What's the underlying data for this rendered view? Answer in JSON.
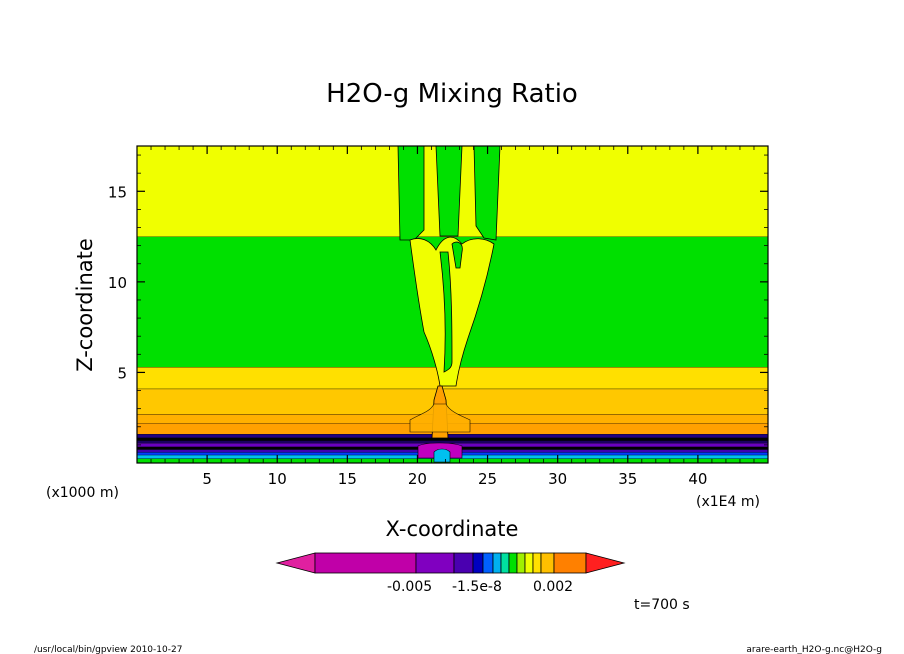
{
  "chart_data": {
    "type": "heatmap",
    "title": "H2O-g Mixing Ratio",
    "xlabel": "X-coordinate",
    "ylabel": "Z-coordinate",
    "x_unit_label": "(x1E4 m)",
    "y_unit_label": "(x1000 m)",
    "xlim": [
      0,
      45
    ],
    "ylim": [
      0,
      17.5
    ],
    "x_ticks": [
      "5",
      "10",
      "15",
      "20",
      "25",
      "30",
      "35",
      "40"
    ],
    "y_ticks": [
      "5",
      "10",
      "15"
    ],
    "x_tick_values": [
      5,
      10,
      15,
      20,
      25,
      30,
      35,
      40
    ],
    "y_tick_values": [
      5,
      10,
      15
    ],
    "bands": [
      {
        "z0": 0.0,
        "z1": 0.25,
        "color": "#00e000"
      },
      {
        "z0": 0.25,
        "z1": 0.45,
        "color": "#00c0f0"
      },
      {
        "z0": 0.45,
        "z1": 0.6,
        "color": "#0040ff"
      },
      {
        "z0": 0.6,
        "z1": 0.75,
        "color": "#4000b0"
      },
      {
        "z0": 0.75,
        "z1": 0.9,
        "color": "#000000"
      },
      {
        "z0": 0.9,
        "z1": 1.1,
        "color": "#6a00c0"
      },
      {
        "z0": 1.1,
        "z1": 1.25,
        "color": "#1a0060"
      },
      {
        "z0": 1.25,
        "z1": 1.4,
        "color": "#000000"
      },
      {
        "z0": 1.4,
        "z1": 1.6,
        "color": "#200080"
      },
      {
        "z0": 1.6,
        "z1": 2.2,
        "color": "#ffa000"
      },
      {
        "z0": 2.2,
        "z1": 2.7,
        "color": "#ffb000"
      },
      {
        "z0": 2.7,
        "z1": 4.1,
        "color": "#ffc800"
      },
      {
        "z0": 4.1,
        "z1": 5.3,
        "color": "#ffe000"
      },
      {
        "z0": 5.3,
        "z1": 12.5,
        "color": "#00e000"
      },
      {
        "z0": 12.5,
        "z1": 17.5,
        "color": "#f0ff00"
      }
    ],
    "colorbar": {
      "colors": [
        "#e020a0",
        "#c000a8",
        "#8000c0",
        "#4a00b0",
        "#0000c0",
        "#0060ff",
        "#00b0f0",
        "#00e0a0",
        "#00e000",
        "#a0f000",
        "#f0ff00",
        "#ffe000",
        "#ffc000",
        "#ff8000",
        "#ff2020"
      ],
      "tick_labels": [
        "-0.005",
        "-1.5e-8",
        "0.002"
      ]
    },
    "annotation_time": "t=700 s"
  },
  "footer": {
    "left": "/usr/local/bin/gpview  2010-10-27",
    "right": "arare-earth_H2O-g.nc@H2O-g"
  },
  "colors": {
    "background": "#ffffff",
    "yellow": "#f0ff00",
    "green": "#00e000",
    "orange": "#ffa000"
  }
}
